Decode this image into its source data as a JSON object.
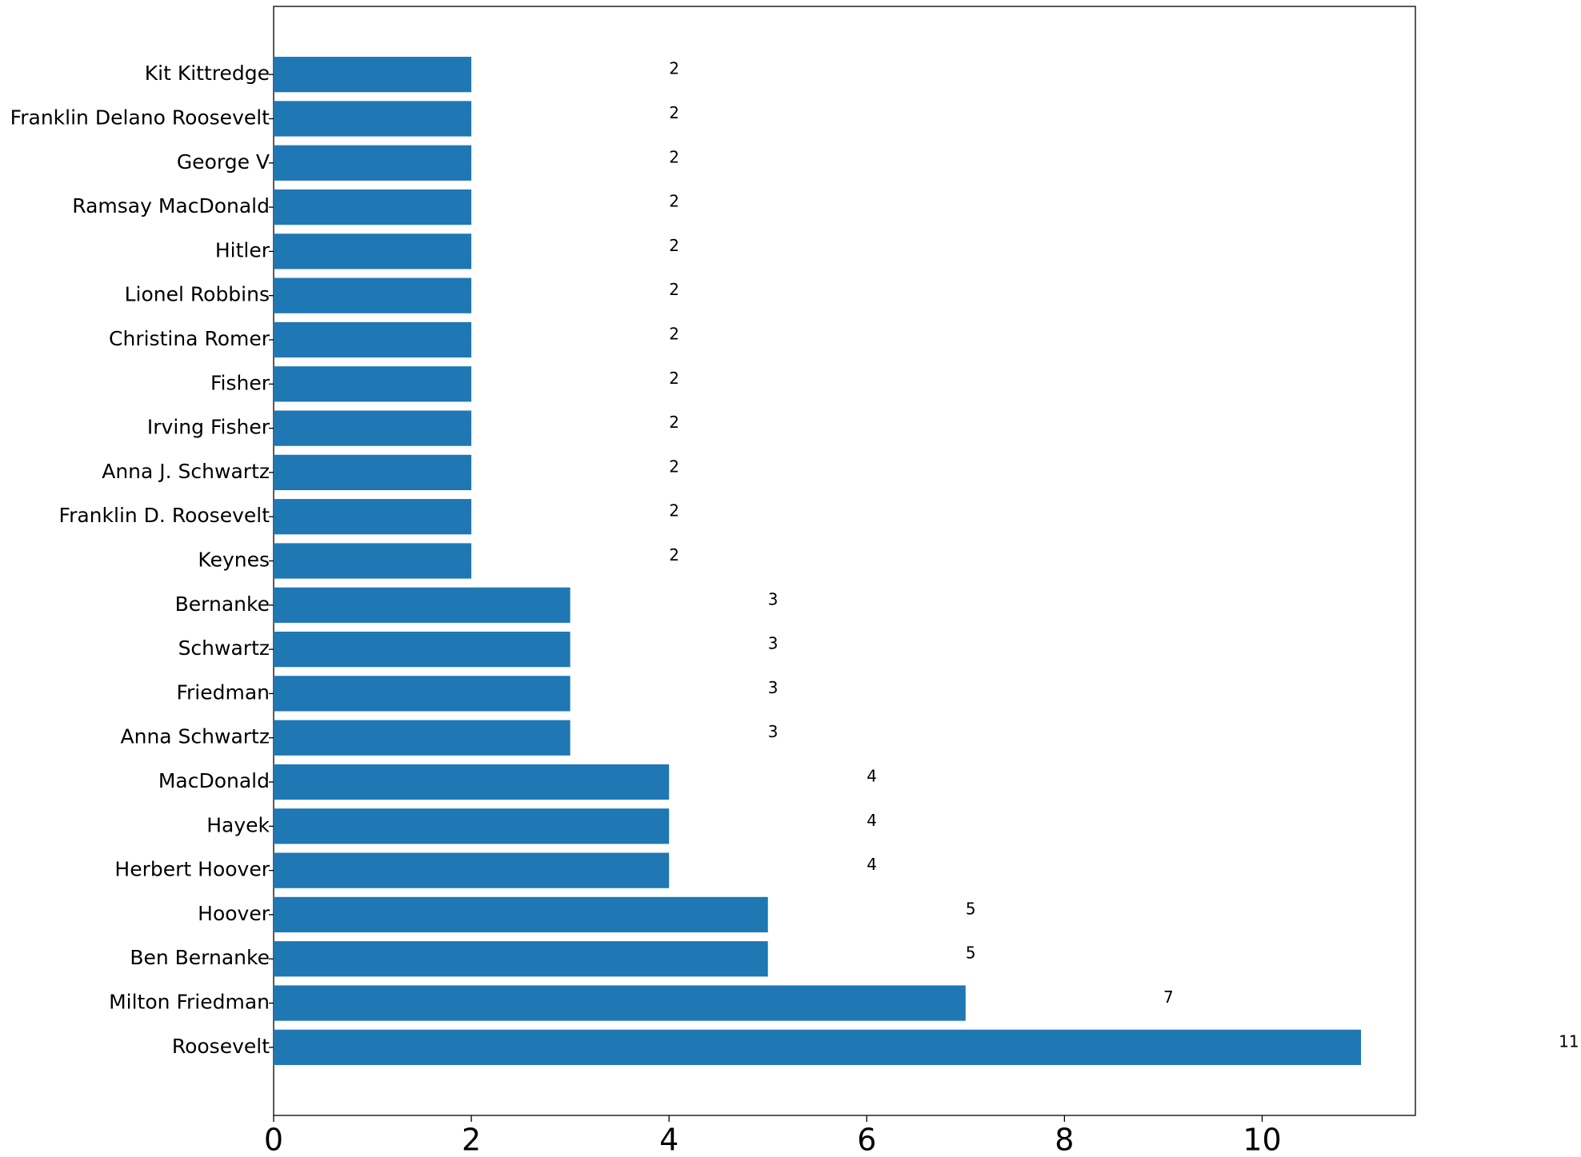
{
  "chart_data": {
    "type": "barh",
    "categories": [
      "Roosevelt",
      "Milton Friedman",
      "Ben Bernanke",
      "Hoover",
      "Herbert Hoover",
      "Hayek",
      "MacDonald",
      "Anna Schwartz",
      "Friedman",
      "Schwartz",
      "Bernanke",
      "Keynes",
      "Franklin D. Roosevelt",
      "Anna J. Schwartz",
      "Irving Fisher",
      "Fisher",
      "Christina Romer",
      "Lionel Robbins",
      "Hitler",
      "Ramsay MacDonald",
      "George V",
      "Franklin Delano Roosevelt",
      "Kit Kittredge"
    ],
    "values": [
      11,
      7,
      5,
      5,
      4,
      4,
      4,
      3,
      3,
      3,
      3,
      2,
      2,
      2,
      2,
      2,
      2,
      2,
      2,
      2,
      2,
      2,
      2
    ],
    "color": "#1f77b4",
    "xlim": [
      0,
      11.55
    ],
    "xticks": [
      0,
      2,
      4,
      6,
      8,
      10
    ]
  }
}
